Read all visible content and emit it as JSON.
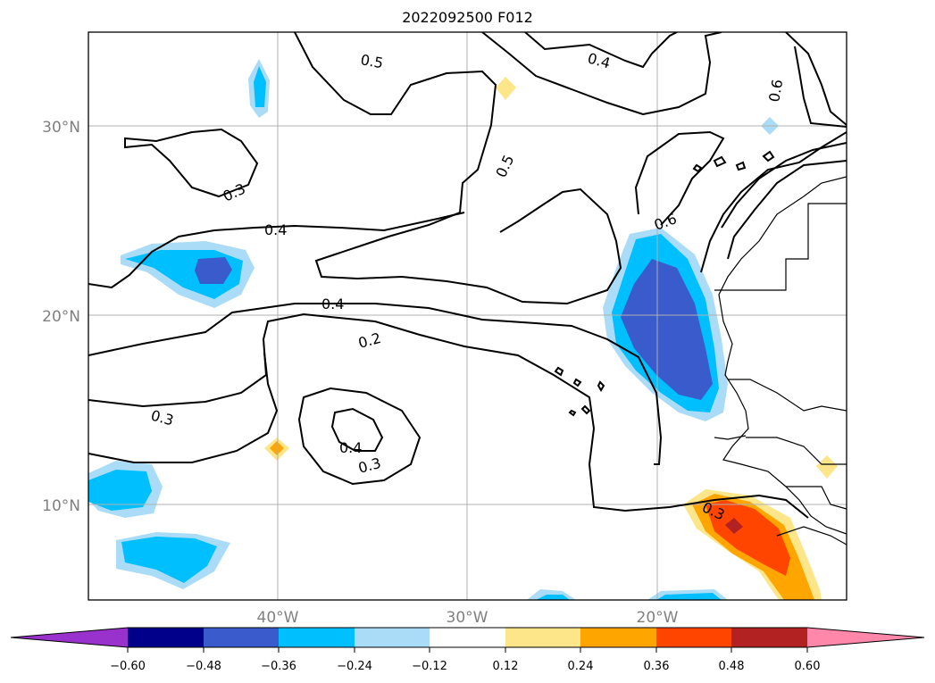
{
  "title": "2022092500 F012",
  "axes": {
    "lat_labels": [
      "30°N",
      "20°N",
      "10°N"
    ],
    "lon_labels": [
      "40°W",
      "30°W",
      "20°W"
    ]
  },
  "contour_labels": [
    "0.5",
    "0.4",
    "0.6",
    "0.3",
    "0.4",
    "0.5",
    "0.6",
    "0.4",
    "0.2",
    "0.3",
    "0.4",
    "0.3",
    "0.3"
  ],
  "colorbar": {
    "ticks": [
      "−0.60",
      "−0.48",
      "−0.36",
      "−0.24",
      "−0.12",
      "0.12",
      "0.24",
      "0.36",
      "0.48",
      "0.60"
    ],
    "colors": [
      "#9932cc",
      "#00008b",
      "#3a5bcc",
      "#00bfff",
      "#aadcf7",
      "#ffffff",
      "#fde68a",
      "#ffa500",
      "#ff4500",
      "#b22222",
      "#ff88aa"
    ]
  }
}
